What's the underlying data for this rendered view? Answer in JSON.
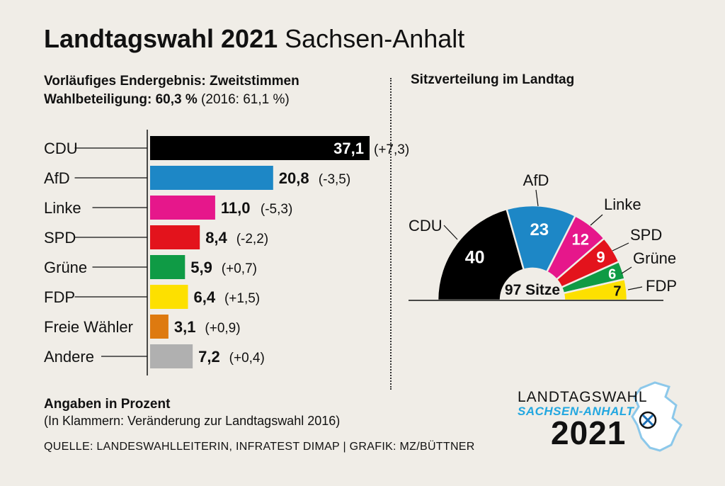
{
  "header": {
    "title_bold": "Landtagswahl 2021",
    "title_light": "Sachsen-Anhalt",
    "subtitle_line1": "Vorläufiges Endergebnis: Zweitstimmen",
    "turnout_label": "Wahlbeteiligung: 60,3 %",
    "turnout_prev": "(2016: 61,1 %)"
  },
  "chart_data": [
    {
      "type": "bar",
      "orientation": "horizontal",
      "title": "Vorläufiges Endergebnis: Zweitstimmen",
      "unit": "Prozent",
      "categories": [
        "CDU",
        "AfD",
        "Linke",
        "SPD",
        "Grüne",
        "FDP",
        "Freie Wähler",
        "Andere"
      ],
      "values": [
        37.1,
        20.8,
        11.0,
        8.4,
        5.9,
        6.4,
        3.1,
        7.2
      ],
      "value_labels": [
        "37,1",
        "20,8",
        "11,0",
        "8,4",
        "5,9",
        "6,4",
        "3,1",
        "7,2"
      ],
      "changes": [
        "(+7,3)",
        "(-3,5)",
        "(-5,3)",
        "(-2,2)",
        "(+0,7)",
        "(+1,5)",
        "(+0,9)",
        "(+0,4)"
      ],
      "colors": [
        "#000000",
        "#1d87c6",
        "#e6178b",
        "#e3131c",
        "#0f9b45",
        "#fde000",
        "#de7a10",
        "#b0b0b0"
      ],
      "xlim": [
        0,
        37.1
      ]
    },
    {
      "type": "pie",
      "variant": "parliament-semicircle",
      "title": "Sitzverteilung im Landtag",
      "categories": [
        "CDU",
        "AfD",
        "Linke",
        "SPD",
        "Grüne",
        "FDP"
      ],
      "values": [
        40,
        23,
        12,
        9,
        6,
        7
      ],
      "colors": [
        "#000000",
        "#1d87c6",
        "#e6178b",
        "#e3131c",
        "#0f9b45",
        "#fde000"
      ],
      "value_text_colors": [
        "#ffffff",
        "#ffffff",
        "#ffffff",
        "#ffffff",
        "#ffffff",
        "#111111"
      ],
      "total_label": "97 Sitze"
    }
  ],
  "footer": {
    "unit_note": "Angaben in Prozent",
    "change_note": "(In Klammern: Veränderung zur Landtagswahl 2016)",
    "source": "QUELLE: LANDESWAHLLEITERIN, INFRATEST DIMAP | GRAFIK: MZ/BÜTTNER"
  },
  "logo": {
    "line1": "LANDTAGSWAHL",
    "line2": "SACHSEN-ANHALT",
    "line3": "2021",
    "accent_color": "#22a7e0"
  }
}
